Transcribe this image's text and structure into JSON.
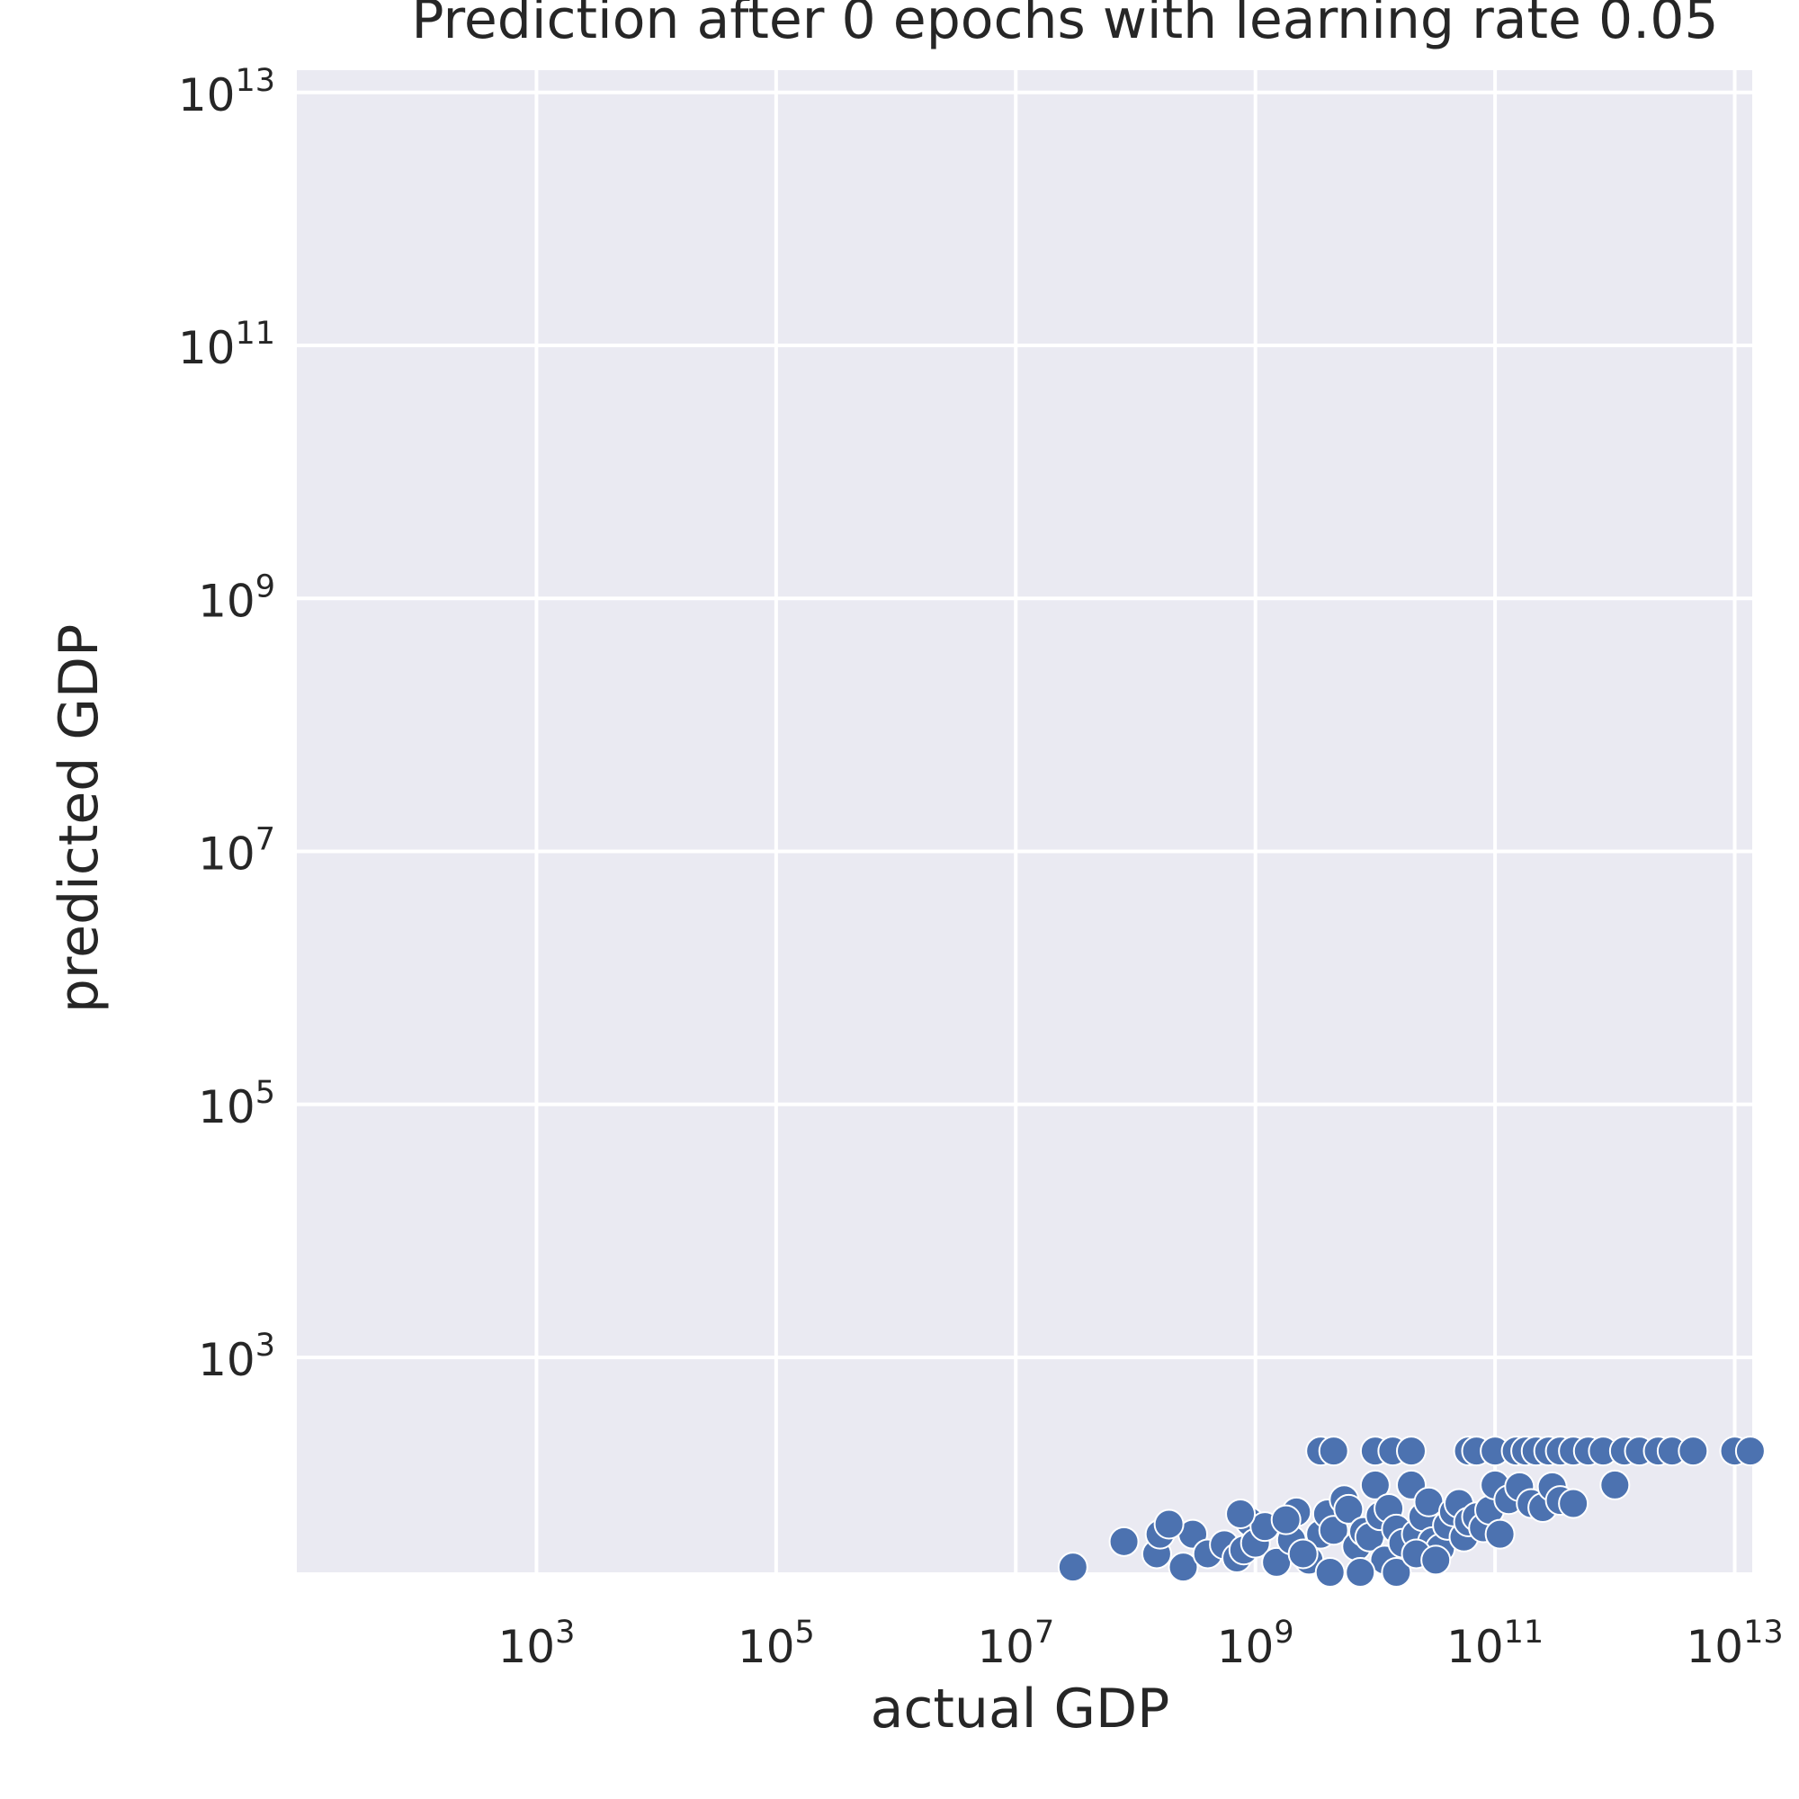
{
  "chart_data": {
    "type": "scatter",
    "title": "Prediction after 0 epochs with learning rate 0.05",
    "xlabel": "actual GDP",
    "ylabel": "predicted GDP",
    "xscale": "log",
    "yscale": "log",
    "xlim": [
      10.0,
      14000000000000.0
    ],
    "ylim": [
      20.0,
      15000000000000.0
    ],
    "grid": true,
    "background": "#eaeaf2",
    "marker_color": "#4c72b0",
    "xticks": [
      {
        "base": "10",
        "exp": "3",
        "value": 1000.0
      },
      {
        "base": "10",
        "exp": "5",
        "value": 100000.0
      },
      {
        "base": "10",
        "exp": "7",
        "value": 10000000.0
      },
      {
        "base": "10",
        "exp": "9",
        "value": 1000000000.0
      },
      {
        "base": "10",
        "exp": "11",
        "value": 100000000000.0
      },
      {
        "base": "10",
        "exp": "13",
        "value": 10000000000000.0
      }
    ],
    "yticks": [
      {
        "base": "10",
        "exp": "3",
        "value": 1000.0
      },
      {
        "base": "10",
        "exp": "5",
        "value": 100000.0
      },
      {
        "base": "10",
        "exp": "7",
        "value": 10000000.0
      },
      {
        "base": "10",
        "exp": "9",
        "value": 1000000000.0
      },
      {
        "base": "10",
        "exp": "11",
        "value": 100000000000.0
      },
      {
        "base": "10",
        "exp": "13",
        "value": 10000000000000.0
      }
    ],
    "points": [
      [
        30000000.0,
        22
      ],
      [
        80000000.0,
        35
      ],
      [
        150000000.0,
        28
      ],
      [
        160000000.0,
        40
      ],
      [
        250000000.0,
        22
      ],
      [
        300000000.0,
        40
      ],
      [
        400000000.0,
        28
      ],
      [
        550000000.0,
        33
      ],
      [
        700000000.0,
        26
      ],
      [
        800000000.0,
        30
      ],
      [
        900000000.0,
        50
      ],
      [
        1000000000.0,
        34
      ],
      [
        1200000000.0,
        46
      ],
      [
        1500000000.0,
        24
      ],
      [
        2000000000.0,
        36
      ],
      [
        2200000000.0,
        60
      ],
      [
        2800000000.0,
        25
      ],
      [
        3500000000.0,
        40
      ],
      [
        4000000000.0,
        58
      ],
      [
        4500000000.0,
        43
      ],
      [
        5500000000.0,
        75
      ],
      [
        6000000000.0,
        63
      ],
      [
        7000000000.0,
        32
      ],
      [
        8000000000.0,
        42
      ],
      [
        9000000000.0,
        38
      ],
      [
        10000000000.0,
        98
      ],
      [
        11000000000.0,
        56
      ],
      [
        12000000000.0,
        25
      ],
      [
        13000000000.0,
        64
      ],
      [
        15000000000.0,
        44
      ],
      [
        17000000000.0,
        34
      ],
      [
        20000000000.0,
        98
      ],
      [
        22000000000.0,
        40
      ],
      [
        25000000000.0,
        55
      ],
      [
        28000000000.0,
        72
      ],
      [
        30000000000.0,
        35
      ],
      [
        35000000000.0,
        31
      ],
      [
        40000000000.0,
        47
      ],
      [
        45000000000.0,
        60
      ],
      [
        50000000000.0,
        70
      ],
      [
        55000000000.0,
        38
      ],
      [
        60000000000.0,
        50
      ],
      [
        70000000000.0,
        55
      ],
      [
        80000000000.0,
        45
      ],
      [
        90000000000.0,
        62
      ],
      [
        100000000000.0,
        98
      ],
      [
        110000000000.0,
        40
      ],
      [
        130000000000.0,
        75
      ],
      [
        160000000000.0,
        95
      ],
      [
        200000000000.0,
        70
      ],
      [
        250000000000.0,
        65
      ],
      [
        300000000000.0,
        95
      ],
      [
        350000000000.0,
        74
      ],
      [
        450000000000.0,
        70
      ],
      [
        1000000000000.0,
        98
      ],
      [
        3500000000.0,
        182
      ],
      [
        4500000000.0,
        182
      ],
      [
        10000000000.0,
        182
      ],
      [
        14000000000.0,
        182
      ],
      [
        20000000000.0,
        182
      ],
      [
        60000000000.0,
        182
      ],
      [
        70000000000.0,
        182
      ],
      [
        100000000000.0,
        182
      ],
      [
        150000000000.0,
        182
      ],
      [
        180000000000.0,
        182
      ],
      [
        220000000000.0,
        182
      ],
      [
        280000000000.0,
        182
      ],
      [
        350000000000.0,
        182
      ],
      [
        450000000000.0,
        182
      ],
      [
        600000000000.0,
        182
      ],
      [
        800000000000.0,
        182
      ],
      [
        1200000000000.0,
        182
      ],
      [
        1600000000000.0,
        182
      ],
      [
        2300000000000.0,
        182
      ],
      [
        3000000000000.0,
        182
      ],
      [
        4500000000000.0,
        182
      ],
      [
        10000000000000.0,
        182
      ],
      [
        13500000000000.0,
        182
      ],
      [
        190000000.0,
        48
      ],
      [
        750000000.0,
        58
      ],
      [
        1800000000.0,
        52
      ],
      [
        2500000000.0,
        28
      ],
      [
        4200000000.0,
        20
      ],
      [
        7500000000.0,
        20
      ],
      [
        15000000000.0,
        20
      ],
      [
        22000000000.0,
        28
      ],
      [
        32000000000.0,
        25
      ]
    ]
  }
}
